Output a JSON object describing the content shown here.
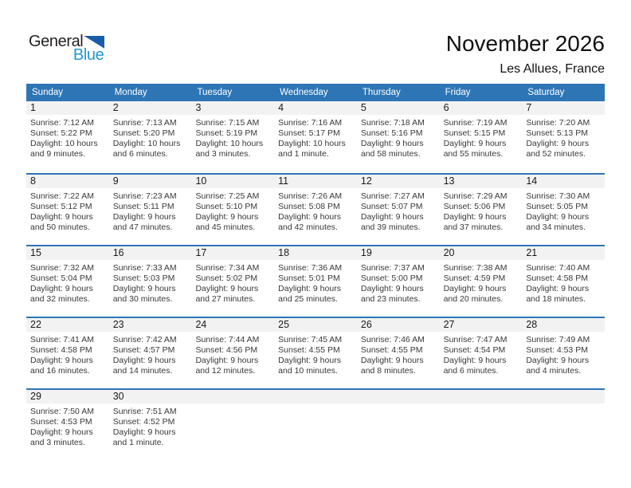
{
  "appearance": {
    "accent_blue": "#2e75b6",
    "band_gray": "#f2f2f2",
    "logo_triangle_blue": "#1a5da8",
    "logo_blue_text": "#2397d4",
    "text_dark": "#383838"
  },
  "logo": {
    "word1": "General",
    "word2": "Blue"
  },
  "header": {
    "title": "November 2026",
    "location": "Les Allues, France"
  },
  "calendar": {
    "weekday_headers": [
      "Sunday",
      "Monday",
      "Tuesday",
      "Wednesday",
      "Thursday",
      "Friday",
      "Saturday"
    ],
    "weeks": [
      [
        {
          "day": "1",
          "sunrise": "Sunrise: 7:12 AM",
          "sunset": "Sunset: 5:22 PM",
          "daylight": "Daylight: 10 hours and 9 minutes."
        },
        {
          "day": "2",
          "sunrise": "Sunrise: 7:13 AM",
          "sunset": "Sunset: 5:20 PM",
          "daylight": "Daylight: 10 hours and 6 minutes."
        },
        {
          "day": "3",
          "sunrise": "Sunrise: 7:15 AM",
          "sunset": "Sunset: 5:19 PM",
          "daylight": "Daylight: 10 hours and 3 minutes."
        },
        {
          "day": "4",
          "sunrise": "Sunrise: 7:16 AM",
          "sunset": "Sunset: 5:17 PM",
          "daylight": "Daylight: 10 hours and 1 minute."
        },
        {
          "day": "5",
          "sunrise": "Sunrise: 7:18 AM",
          "sunset": "Sunset: 5:16 PM",
          "daylight": "Daylight: 9 hours and 58 minutes."
        },
        {
          "day": "6",
          "sunrise": "Sunrise: 7:19 AM",
          "sunset": "Sunset: 5:15 PM",
          "daylight": "Daylight: 9 hours and 55 minutes."
        },
        {
          "day": "7",
          "sunrise": "Sunrise: 7:20 AM",
          "sunset": "Sunset: 5:13 PM",
          "daylight": "Daylight: 9 hours and 52 minutes."
        }
      ],
      [
        {
          "day": "8",
          "sunrise": "Sunrise: 7:22 AM",
          "sunset": "Sunset: 5:12 PM",
          "daylight": "Daylight: 9 hours and 50 minutes."
        },
        {
          "day": "9",
          "sunrise": "Sunrise: 7:23 AM",
          "sunset": "Sunset: 5:11 PM",
          "daylight": "Daylight: 9 hours and 47 minutes."
        },
        {
          "day": "10",
          "sunrise": "Sunrise: 7:25 AM",
          "sunset": "Sunset: 5:10 PM",
          "daylight": "Daylight: 9 hours and 45 minutes."
        },
        {
          "day": "11",
          "sunrise": "Sunrise: 7:26 AM",
          "sunset": "Sunset: 5:08 PM",
          "daylight": "Daylight: 9 hours and 42 minutes."
        },
        {
          "day": "12",
          "sunrise": "Sunrise: 7:27 AM",
          "sunset": "Sunset: 5:07 PM",
          "daylight": "Daylight: 9 hours and 39 minutes."
        },
        {
          "day": "13",
          "sunrise": "Sunrise: 7:29 AM",
          "sunset": "Sunset: 5:06 PM",
          "daylight": "Daylight: 9 hours and 37 minutes."
        },
        {
          "day": "14",
          "sunrise": "Sunrise: 7:30 AM",
          "sunset": "Sunset: 5:05 PM",
          "daylight": "Daylight: 9 hours and 34 minutes."
        }
      ],
      [
        {
          "day": "15",
          "sunrise": "Sunrise: 7:32 AM",
          "sunset": "Sunset: 5:04 PM",
          "daylight": "Daylight: 9 hours and 32 minutes."
        },
        {
          "day": "16",
          "sunrise": "Sunrise: 7:33 AM",
          "sunset": "Sunset: 5:03 PM",
          "daylight": "Daylight: 9 hours and 30 minutes."
        },
        {
          "day": "17",
          "sunrise": "Sunrise: 7:34 AM",
          "sunset": "Sunset: 5:02 PM",
          "daylight": "Daylight: 9 hours and 27 minutes."
        },
        {
          "day": "18",
          "sunrise": "Sunrise: 7:36 AM",
          "sunset": "Sunset: 5:01 PM",
          "daylight": "Daylight: 9 hours and 25 minutes."
        },
        {
          "day": "19",
          "sunrise": "Sunrise: 7:37 AM",
          "sunset": "Sunset: 5:00 PM",
          "daylight": "Daylight: 9 hours and 23 minutes."
        },
        {
          "day": "20",
          "sunrise": "Sunrise: 7:38 AM",
          "sunset": "Sunset: 4:59 PM",
          "daylight": "Daylight: 9 hours and 20 minutes."
        },
        {
          "day": "21",
          "sunrise": "Sunrise: 7:40 AM",
          "sunset": "Sunset: 4:58 PM",
          "daylight": "Daylight: 9 hours and 18 minutes."
        }
      ],
      [
        {
          "day": "22",
          "sunrise": "Sunrise: 7:41 AM",
          "sunset": "Sunset: 4:58 PM",
          "daylight": "Daylight: 9 hours and 16 minutes."
        },
        {
          "day": "23",
          "sunrise": "Sunrise: 7:42 AM",
          "sunset": "Sunset: 4:57 PM",
          "daylight": "Daylight: 9 hours and 14 minutes."
        },
        {
          "day": "24",
          "sunrise": "Sunrise: 7:44 AM",
          "sunset": "Sunset: 4:56 PM",
          "daylight": "Daylight: 9 hours and 12 minutes."
        },
        {
          "day": "25",
          "sunrise": "Sunrise: 7:45 AM",
          "sunset": "Sunset: 4:55 PM",
          "daylight": "Daylight: 9 hours and 10 minutes."
        },
        {
          "day": "26",
          "sunrise": "Sunrise: 7:46 AM",
          "sunset": "Sunset: 4:55 PM",
          "daylight": "Daylight: 9 hours and 8 minutes."
        },
        {
          "day": "27",
          "sunrise": "Sunrise: 7:47 AM",
          "sunset": "Sunset: 4:54 PM",
          "daylight": "Daylight: 9 hours and 6 minutes."
        },
        {
          "day": "28",
          "sunrise": "Sunrise: 7:49 AM",
          "sunset": "Sunset: 4:53 PM",
          "daylight": "Daylight: 9 hours and 4 minutes."
        }
      ],
      [
        {
          "day": "29",
          "sunrise": "Sunrise: 7:50 AM",
          "sunset": "Sunset: 4:53 PM",
          "daylight": "Daylight: 9 hours and 3 minutes."
        },
        {
          "day": "30",
          "sunrise": "Sunrise: 7:51 AM",
          "sunset": "Sunset: 4:52 PM",
          "daylight": "Daylight: 9 hours and 1 minute."
        },
        null,
        null,
        null,
        null,
        null
      ]
    ]
  }
}
